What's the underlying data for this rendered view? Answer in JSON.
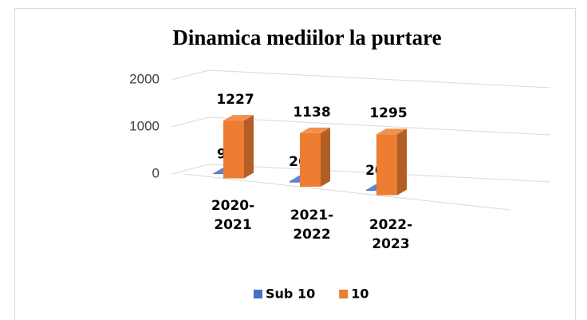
{
  "chart_data": {
    "type": "bar3d",
    "title": "Dinamica mediilor la purtare",
    "categories": [
      "2020-2021",
      "2021-2022",
      "2022-2023"
    ],
    "series": [
      {
        "name": "Sub 10",
        "color": "#4472c4",
        "values": [
          9,
          26,
          20
        ]
      },
      {
        "name": "10",
        "color": "#ed7d31",
        "values": [
          1227,
          1138,
          1295
        ]
      }
    ],
    "ylim": [
      0,
      2000
    ],
    "yticks": [
      0,
      1000,
      2000
    ],
    "grid": true,
    "legend": "bottom"
  }
}
